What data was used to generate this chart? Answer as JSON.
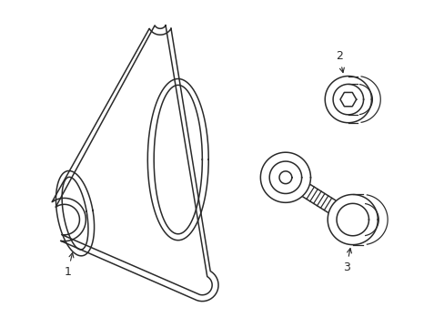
{
  "background_color": "#ffffff",
  "line_color": "#2a2a2a",
  "line_width": 1.1,
  "fig_width": 4.89,
  "fig_height": 3.6,
  "dpi": 100
}
